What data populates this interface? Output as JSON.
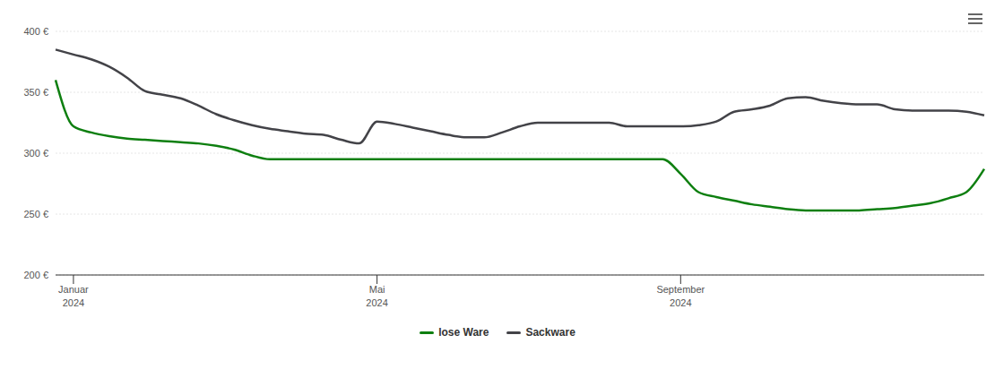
{
  "chart_data": {
    "type": "line",
    "categories": [
      null,
      "Januar 2024",
      null,
      null,
      null,
      null,
      null,
      null,
      null,
      null,
      null,
      null,
      null,
      null,
      null,
      null,
      null,
      null,
      "Mai 2024",
      null,
      null,
      null,
      null,
      null,
      null,
      null,
      null,
      null,
      null,
      null,
      null,
      null,
      null,
      null,
      null,
      "September 2024",
      null,
      null,
      null,
      null,
      null,
      null,
      null,
      null,
      null,
      null,
      null,
      null,
      null,
      null,
      null,
      null,
      null
    ],
    "series": [
      {
        "name": "lose Ware",
        "color": "#0e7f10",
        "values": [
          360,
          322,
          317,
          314,
          312,
          311,
          310,
          309,
          308,
          306,
          303,
          298,
          295,
          295,
          295,
          295,
          295,
          295,
          295,
          295,
          295,
          295,
          295,
          295,
          295,
          295,
          295,
          295,
          295,
          295,
          295,
          295,
          295,
          295,
          295,
          283,
          268,
          264,
          261,
          258,
          256,
          254,
          253,
          253,
          253,
          253,
          254,
          255,
          257,
          259,
          263,
          268,
          287
        ]
      },
      {
        "name": "Sackware",
        "color": "#434348",
        "values": [
          385,
          381,
          377,
          371,
          362,
          351,
          348,
          345,
          339,
          332,
          327,
          323,
          320,
          318,
          316,
          315,
          311,
          308,
          326,
          324,
          321,
          318,
          315,
          313,
          313,
          317,
          322,
          325,
          325,
          325,
          325,
          325,
          322,
          322,
          322,
          322,
          323,
          326,
          334,
          336,
          339,
          345,
          346,
          343,
          341,
          340,
          340,
          336,
          335,
          335,
          335,
          334,
          331
        ]
      }
    ],
    "ylim": [
      200,
      400
    ],
    "yticks": [
      {
        "value": 200,
        "label": "200 €"
      },
      {
        "value": 250,
        "label": "250 €"
      },
      {
        "value": 300,
        "label": "300 €"
      },
      {
        "value": 350,
        "label": "350 €"
      },
      {
        "value": 400,
        "label": "400 €"
      }
    ],
    "grid": true,
    "legend": "bottom"
  }
}
